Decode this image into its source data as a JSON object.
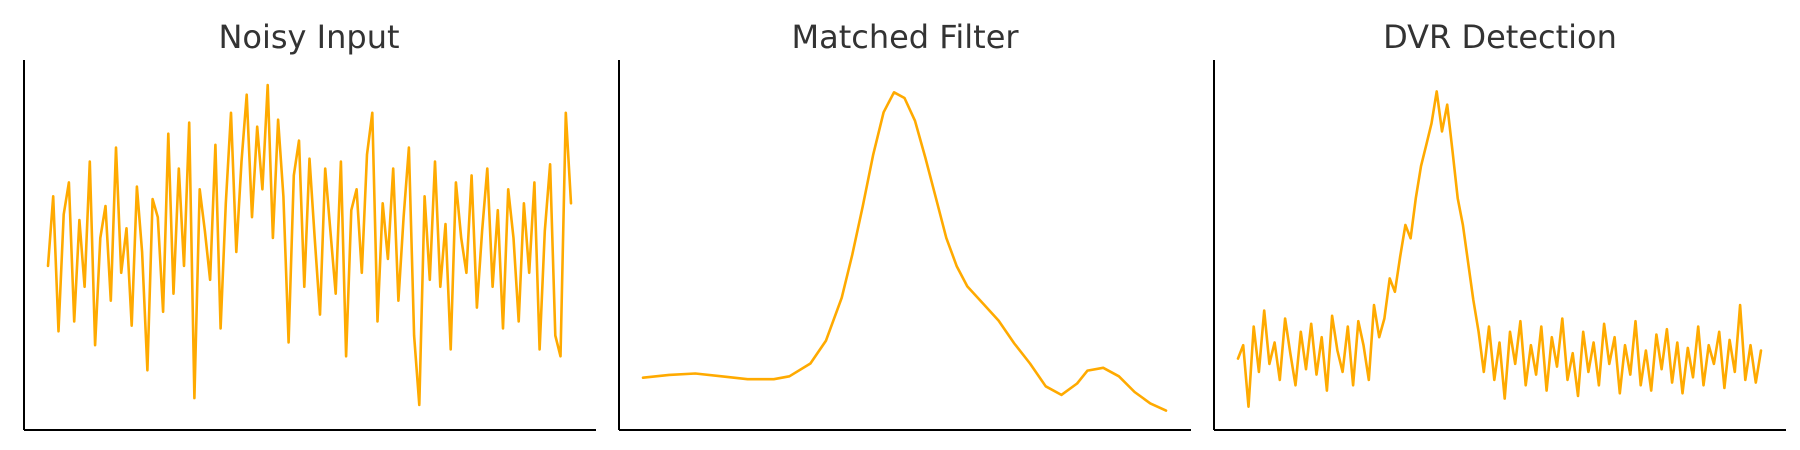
{
  "accent_color": "#FFAA00",
  "chart_data": [
    {
      "type": "line",
      "title": "Noisy Input",
      "xlabel": "",
      "ylabel": "",
      "xlim": [
        0,
        1
      ],
      "ylim": [
        -1.2,
        1.2
      ],
      "grid": false,
      "ticks_shown": false,
      "series": [
        {
          "color": "#FFAA00",
          "x": [
            0.0,
            0.01,
            0.02,
            0.03,
            0.04,
            0.05,
            0.06,
            0.07,
            0.08,
            0.09,
            0.1,
            0.11,
            0.12,
            0.13,
            0.14,
            0.15,
            0.16,
            0.17,
            0.18,
            0.19,
            0.2,
            0.21,
            0.22,
            0.23,
            0.24,
            0.25,
            0.26,
            0.27,
            0.28,
            0.29,
            0.3,
            0.31,
            0.32,
            0.33,
            0.34,
            0.35,
            0.36,
            0.37,
            0.38,
            0.39,
            0.4,
            0.41,
            0.42,
            0.43,
            0.44,
            0.45,
            0.46,
            0.47,
            0.48,
            0.49,
            0.5,
            0.51,
            0.52,
            0.53,
            0.54,
            0.55,
            0.56,
            0.57,
            0.58,
            0.59,
            0.6,
            0.61,
            0.62,
            0.63,
            0.64,
            0.65,
            0.66,
            0.67,
            0.68,
            0.69,
            0.7,
            0.71,
            0.72,
            0.73,
            0.74,
            0.75,
            0.76,
            0.77,
            0.78,
            0.79,
            0.8,
            0.81,
            0.82,
            0.83,
            0.84,
            0.85,
            0.86,
            0.87,
            0.88,
            0.89,
            0.9,
            0.91,
            0.92,
            0.93,
            0.94,
            0.95,
            0.96,
            0.97,
            0.98,
            0.99,
            1.0
          ],
          "values": [
            -0.15,
            0.35,
            -0.62,
            0.22,
            0.45,
            -0.55,
            0.18,
            -0.3,
            0.6,
            -0.72,
            0.05,
            0.28,
            -0.4,
            0.7,
            -0.2,
            0.12,
            -0.58,
            0.42,
            -0.05,
            -0.9,
            0.33,
            0.2,
            -0.48,
            0.8,
            -0.35,
            0.55,
            -0.15,
            0.88,
            -1.1,
            0.4,
            0.1,
            -0.25,
            0.72,
            -0.6,
            0.3,
            0.95,
            -0.05,
            0.6,
            1.08,
            0.2,
            0.85,
            0.4,
            1.15,
            0.05,
            0.9,
            0.35,
            -0.7,
            0.5,
            0.75,
            -0.3,
            0.62,
            0.05,
            -0.5,
            0.55,
            0.1,
            -0.35,
            0.6,
            -0.8,
            0.25,
            0.4,
            -0.2,
            0.65,
            0.95,
            -0.55,
            0.3,
            -0.1,
            0.55,
            -0.4,
            0.2,
            0.7,
            -0.65,
            -1.15,
            0.35,
            -0.25,
            0.6,
            -0.3,
            0.15,
            -0.75,
            0.45,
            0.05,
            -0.2,
            0.5,
            -0.45,
            0.1,
            0.55,
            -0.3,
            0.25,
            -0.6,
            0.4,
            0.05,
            -0.55,
            0.3,
            -0.2,
            0.45,
            -0.75,
            0.1,
            0.58,
            -0.65,
            -0.8,
            0.95,
            0.3
          ]
        }
      ]
    },
    {
      "type": "line",
      "title": "Matched Filter",
      "xlabel": "",
      "ylabel": "",
      "xlim": [
        0,
        1
      ],
      "ylim": [
        -0.12,
        1.05
      ],
      "grid": false,
      "ticks_shown": false,
      "series": [
        {
          "color": "#FFAA00",
          "x": [
            0.0,
            0.05,
            0.1,
            0.15,
            0.2,
            0.25,
            0.28,
            0.32,
            0.35,
            0.38,
            0.4,
            0.42,
            0.44,
            0.46,
            0.48,
            0.5,
            0.52,
            0.54,
            0.56,
            0.58,
            0.6,
            0.62,
            0.65,
            0.68,
            0.71,
            0.74,
            0.77,
            0.8,
            0.83,
            0.85,
            0.88,
            0.91,
            0.94,
            0.97,
            1.0
          ],
          "values": [
            0.0,
            0.01,
            0.015,
            0.005,
            -0.005,
            -0.005,
            0.005,
            0.05,
            0.13,
            0.28,
            0.43,
            0.6,
            0.78,
            0.93,
            1.0,
            0.98,
            0.9,
            0.77,
            0.63,
            0.49,
            0.39,
            0.32,
            0.26,
            0.2,
            0.12,
            0.05,
            -0.03,
            -0.06,
            -0.02,
            0.025,
            0.035,
            0.005,
            -0.05,
            -0.09,
            -0.115
          ]
        }
      ]
    },
    {
      "type": "line",
      "title": "DVR Detection",
      "xlabel": "",
      "ylabel": "",
      "xlim": [
        0,
        1
      ],
      "ylim": [
        -0.2,
        1.05
      ],
      "grid": false,
      "ticks_shown": false,
      "series": [
        {
          "color": "#FFAA00",
          "x": [
            0.0,
            0.01,
            0.02,
            0.03,
            0.04,
            0.05,
            0.06,
            0.07,
            0.08,
            0.09,
            0.1,
            0.11,
            0.12,
            0.13,
            0.14,
            0.15,
            0.16,
            0.17,
            0.18,
            0.19,
            0.2,
            0.21,
            0.22,
            0.23,
            0.24,
            0.25,
            0.26,
            0.27,
            0.28,
            0.29,
            0.3,
            0.31,
            0.32,
            0.33,
            0.34,
            0.35,
            0.36,
            0.37,
            0.38,
            0.39,
            0.4,
            0.41,
            0.42,
            0.43,
            0.44,
            0.45,
            0.46,
            0.47,
            0.48,
            0.49,
            0.5,
            0.51,
            0.52,
            0.53,
            0.54,
            0.55,
            0.56,
            0.57,
            0.58,
            0.59,
            0.6,
            0.61,
            0.62,
            0.63,
            0.64,
            0.65,
            0.66,
            0.67,
            0.68,
            0.69,
            0.7,
            0.71,
            0.72,
            0.73,
            0.74,
            0.75,
            0.76,
            0.77,
            0.78,
            0.79,
            0.8,
            0.81,
            0.82,
            0.83,
            0.84,
            0.85,
            0.86,
            0.87,
            0.88,
            0.89,
            0.9,
            0.91,
            0.92,
            0.93,
            0.94,
            0.95,
            0.96,
            0.97,
            0.98,
            0.99,
            1.0
          ],
          "values": [
            0.0,
            0.05,
            -0.18,
            0.12,
            -0.05,
            0.18,
            -0.02,
            0.06,
            -0.08,
            0.15,
            0.02,
            -0.1,
            0.1,
            -0.04,
            0.13,
            -0.06,
            0.08,
            -0.12,
            0.16,
            0.03,
            -0.05,
            0.12,
            -0.1,
            0.14,
            0.05,
            -0.08,
            0.2,
            0.08,
            0.15,
            0.3,
            0.25,
            0.38,
            0.5,
            0.45,
            0.6,
            0.72,
            0.8,
            0.88,
            1.0,
            0.85,
            0.95,
            0.78,
            0.6,
            0.5,
            0.36,
            0.22,
            0.1,
            -0.05,
            0.12,
            -0.08,
            0.06,
            -0.15,
            0.1,
            -0.02,
            0.14,
            -0.1,
            0.05,
            -0.06,
            0.12,
            -0.12,
            0.08,
            -0.03,
            0.15,
            -0.08,
            0.02,
            -0.14,
            0.1,
            -0.05,
            0.06,
            -0.1,
            0.13,
            -0.02,
            0.08,
            -0.13,
            0.05,
            -0.06,
            0.14,
            -0.1,
            0.03,
            -0.12,
            0.09,
            -0.04,
            0.11,
            -0.09,
            0.06,
            -0.13,
            0.04,
            -0.07,
            0.12,
            -0.1,
            0.05,
            -0.02,
            0.1,
            -0.11,
            0.07,
            -0.05,
            0.2,
            -0.08,
            0.05,
            -0.09,
            0.03
          ]
        }
      ]
    }
  ]
}
